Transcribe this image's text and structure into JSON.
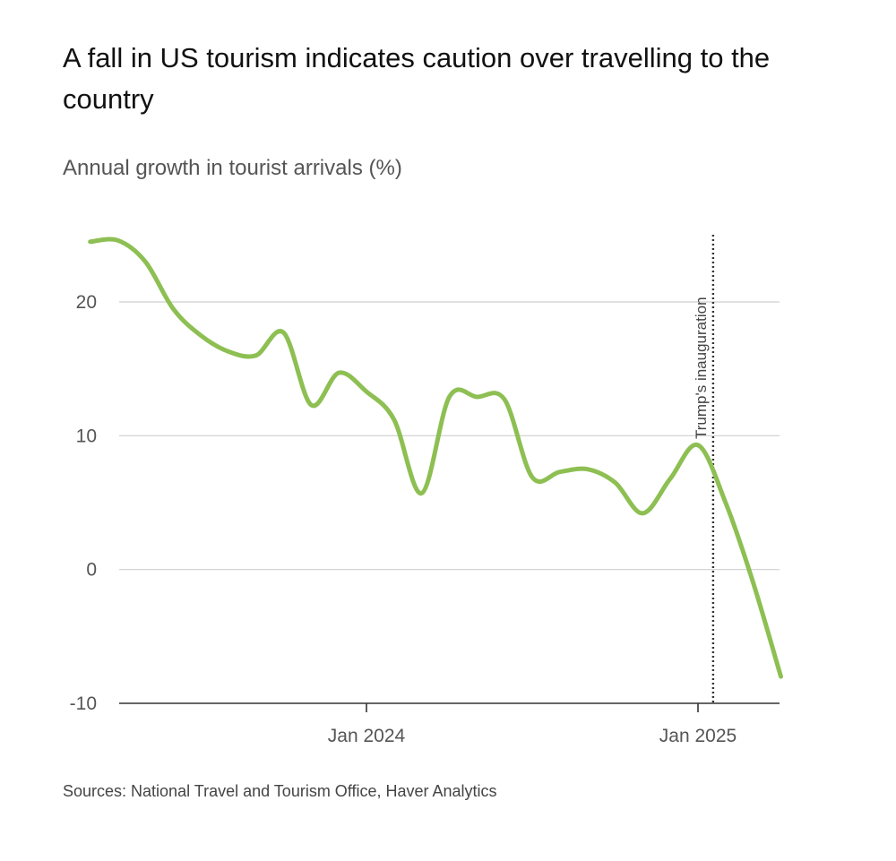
{
  "chart_data": {
    "type": "line",
    "title": "A fall in US tourism indicates caution over travelling to the country",
    "subtitle": "Annual growth in tourist arrivals (%)",
    "source": "Sources: National Travel and Tourism Office, Haver Analytics",
    "ylim": [
      -10,
      25
    ],
    "y_ticks": [
      20,
      10,
      0,
      -10
    ],
    "x_ticks": [
      {
        "label": "Jan 2024",
        "date": "2024-01"
      },
      {
        "label": "Jan 2025",
        "date": "2025-01"
      }
    ],
    "grid": true,
    "series": [
      {
        "color": "#8dbf52",
        "points": [
          {
            "x": "2023-03",
            "y": 24.5
          },
          {
            "x": "2023-04",
            "y": 24.6
          },
          {
            "x": "2023-05",
            "y": 23.0
          },
          {
            "x": "2023-06",
            "y": 19.5
          },
          {
            "x": "2023-07",
            "y": 17.5
          },
          {
            "x": "2023-08",
            "y": 16.3
          },
          {
            "x": "2023-09",
            "y": 16.0
          },
          {
            "x": "2023-10",
            "y": 17.7
          },
          {
            "x": "2023-11",
            "y": 12.3
          },
          {
            "x": "2023-12",
            "y": 14.7
          },
          {
            "x": "2024-01",
            "y": 13.3
          },
          {
            "x": "2024-02",
            "y": 11.2
          },
          {
            "x": "2024-03",
            "y": 5.7
          },
          {
            "x": "2024-04",
            "y": 12.9
          },
          {
            "x": "2024-05",
            "y": 12.9
          },
          {
            "x": "2024-06",
            "y": 12.7
          },
          {
            "x": "2024-07",
            "y": 6.9
          },
          {
            "x": "2024-08",
            "y": 7.3
          },
          {
            "x": "2024-09",
            "y": 7.5
          },
          {
            "x": "2024-10",
            "y": 6.5
          },
          {
            "x": "2024-11",
            "y": 4.2
          },
          {
            "x": "2024-12",
            "y": 6.8
          },
          {
            "x": "2025-01",
            "y": 9.3
          },
          {
            "x": "2025-02",
            "y": 5.0
          },
          {
            "x": "2025-03",
            "y": -1.0
          },
          {
            "x": "2025-04",
            "y": -8.0
          }
        ]
      }
    ],
    "annotations": [
      {
        "text": "Trump's inauguration",
        "date": "2025-01-20",
        "style": "dotted-vertical-line"
      }
    ]
  }
}
